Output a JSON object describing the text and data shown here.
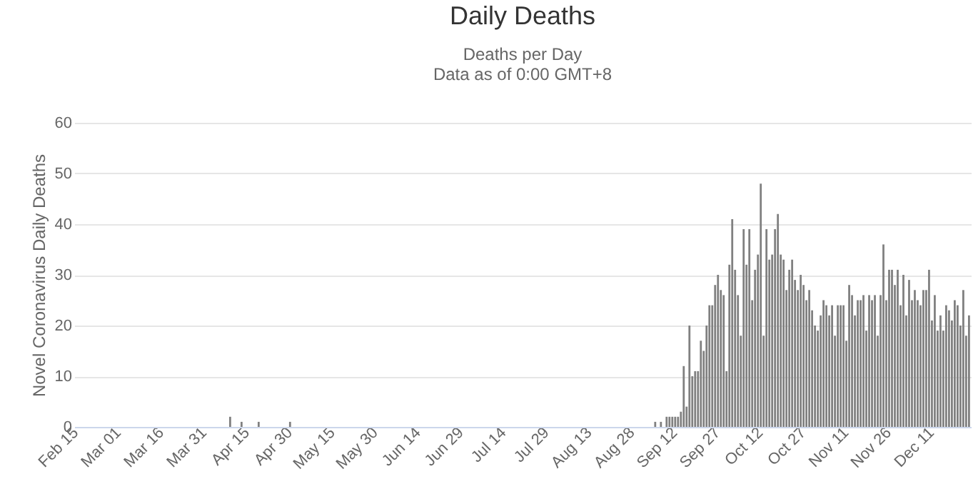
{
  "chart_data": {
    "type": "bar",
    "title": "Daily Deaths",
    "subtitle": "Deaths per Day\nData as of 0:00 GMT+8",
    "ylabel": "Novel Coronavirus Daily Deaths",
    "categories": [
      "Feb 15",
      null,
      null,
      null,
      null,
      null,
      null,
      null,
      null,
      null,
      null,
      null,
      null,
      null,
      null,
      "Mar 01",
      null,
      null,
      null,
      null,
      null,
      null,
      null,
      null,
      null,
      null,
      null,
      null,
      null,
      null,
      "Mar 16",
      null,
      null,
      null,
      null,
      null,
      null,
      null,
      null,
      null,
      null,
      null,
      null,
      null,
      null,
      "Mar 31",
      null,
      null,
      null,
      null,
      null,
      null,
      null,
      null,
      null,
      null,
      null,
      null,
      null,
      null,
      "Apr 15",
      null,
      null,
      null,
      null,
      null,
      null,
      null,
      null,
      null,
      null,
      null,
      null,
      null,
      null,
      "Apr 30",
      null,
      null,
      null,
      null,
      null,
      null,
      null,
      null,
      null,
      null,
      null,
      null,
      null,
      null,
      "May 15",
      null,
      null,
      null,
      null,
      null,
      null,
      null,
      null,
      null,
      null,
      null,
      null,
      null,
      null,
      "May 30",
      null,
      null,
      null,
      null,
      null,
      null,
      null,
      null,
      null,
      null,
      null,
      null,
      null,
      null,
      "Jun 14",
      null,
      null,
      null,
      null,
      null,
      null,
      null,
      null,
      null,
      null,
      null,
      null,
      null,
      null,
      "Jun 29",
      null,
      null,
      null,
      null,
      null,
      null,
      null,
      null,
      null,
      null,
      null,
      null,
      null,
      null,
      "Jul 14",
      null,
      null,
      null,
      null,
      null,
      null,
      null,
      null,
      null,
      null,
      null,
      null,
      null,
      null,
      "Jul 29",
      null,
      null,
      null,
      null,
      null,
      null,
      null,
      null,
      null,
      null,
      null,
      null,
      null,
      null,
      "Aug 13",
      null,
      null,
      null,
      null,
      null,
      null,
      null,
      null,
      null,
      null,
      null,
      null,
      null,
      null,
      "Aug 28",
      null,
      null,
      null,
      null,
      null,
      null,
      null,
      null,
      null,
      null,
      null,
      null,
      null,
      null,
      "Sep 12",
      null,
      null,
      null,
      null,
      null,
      null,
      null,
      null,
      null,
      null,
      null,
      null,
      null,
      null,
      "Sep 27",
      null,
      null,
      null,
      null,
      null,
      null,
      null,
      null,
      null,
      null,
      null,
      null,
      null,
      null,
      "Oct 12",
      null,
      null,
      null,
      null,
      null,
      null,
      null,
      null,
      null,
      null,
      null,
      null,
      null,
      null,
      "Oct 27",
      null,
      null,
      null,
      null,
      null,
      null,
      null,
      null,
      null,
      null,
      null,
      null,
      null,
      null,
      "Nov 11",
      null,
      null,
      null,
      null,
      null,
      null,
      null,
      null,
      null,
      null,
      null,
      null,
      null,
      null,
      "Nov 26",
      null,
      null,
      null,
      null,
      null,
      null,
      null,
      null,
      null,
      null,
      null,
      null,
      null,
      null,
      "Dec 11",
      null,
      null,
      null,
      null,
      null,
      null,
      null,
      null,
      null,
      null,
      null,
      null,
      null
    ],
    "values": [
      0,
      0,
      0,
      0,
      0,
      0,
      0,
      0,
      0,
      0,
      0,
      0,
      0,
      0,
      0,
      0,
      0,
      0,
      0,
      0,
      0,
      0,
      0,
      0,
      0,
      0,
      0,
      0,
      0,
      0,
      0,
      0,
      0,
      0,
      0,
      0,
      0,
      0,
      0,
      0,
      0,
      0,
      0,
      0,
      0,
      0,
      0,
      0,
      0,
      0,
      0,
      0,
      0,
      0,
      2,
      0,
      0,
      0,
      1,
      0,
      0,
      0,
      0,
      0,
      1,
      0,
      0,
      0,
      0,
      0,
      0,
      0,
      0,
      0,
      0,
      1,
      0,
      0,
      0,
      0,
      0,
      0,
      0,
      0,
      0,
      0,
      0,
      0,
      0,
      0,
      0,
      0,
      0,
      0,
      0,
      0,
      0,
      0,
      0,
      0,
      0,
      0,
      0,
      0,
      0,
      0,
      0,
      0,
      0,
      0,
      0,
      0,
      0,
      0,
      0,
      0,
      0,
      0,
      0,
      0,
      0,
      0,
      0,
      0,
      0,
      0,
      0,
      0,
      0,
      0,
      0,
      0,
      0,
      0,
      0,
      0,
      0,
      0,
      0,
      0,
      0,
      0,
      0,
      0,
      0,
      0,
      0,
      0,
      0,
      0,
      0,
      0,
      0,
      0,
      0,
      0,
      0,
      0,
      0,
      0,
      0,
      0,
      0,
      0,
      0,
      0,
      0,
      0,
      0,
      0,
      0,
      0,
      0,
      0,
      0,
      0,
      0,
      0,
      0,
      0,
      0,
      0,
      0,
      0,
      0,
      0,
      0,
      0,
      0,
      0,
      0,
      0,
      0,
      0,
      0,
      0,
      0,
      0,
      0,
      0,
      0,
      0,
      0,
      1,
      0,
      1,
      0,
      2,
      2,
      2,
      2,
      2,
      3,
      12,
      4,
      20,
      10,
      11,
      11,
      17,
      15,
      20,
      24,
      24,
      28,
      30,
      27,
      26,
      11,
      32,
      41,
      31,
      26,
      18,
      39,
      32,
      39,
      25,
      31,
      34,
      48,
      18,
      39,
      33,
      34,
      39,
      42,
      34,
      33,
      27,
      31,
      33,
      29,
      27,
      30,
      28,
      25,
      27,
      23,
      20,
      19,
      22,
      25,
      24,
      22,
      24,
      18,
      24,
      24,
      24,
      17,
      28,
      26,
      22,
      25,
      25,
      26,
      19,
      26,
      25,
      26,
      18,
      26,
      36,
      25,
      31,
      31,
      28,
      31,
      24,
      30,
      22,
      29,
      25,
      27,
      25,
      24,
      27,
      27,
      31,
      21,
      26,
      19,
      22,
      19,
      24,
      23,
      21,
      25,
      24,
      20,
      27,
      18,
      22
    ],
    "color": "#808080",
    "ylim": [
      0,
      60
    ],
    "yticks": [
      0,
      10,
      20,
      30,
      40,
      50,
      60
    ],
    "grid": "y"
  }
}
